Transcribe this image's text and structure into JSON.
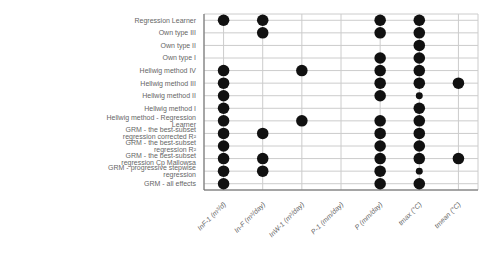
{
  "chart_data": {
    "type": "scatter",
    "categories": [
      "InF-1 (m³/d)",
      "In-F (m³/day)",
      "InW-1 (m³/day)",
      "P-1 (mm/day)",
      "P (mm/day)",
      "tmax (°C)",
      "tmean (°C)"
    ],
    "y_categories": [
      "Regression Learner",
      "Own type III",
      "Own type II",
      "Own type I",
      "Hellwig method IV",
      "Hellwig method III",
      "Hellwig method II",
      "Hellwig method I",
      "Hellwig method - Regression Learner",
      "GRM - the best-subset regression corrected R²",
      "GRM - the best-subset regression R²",
      "GRM - the best-subset regression Cp Mallowsa",
      "GRM - progressive stepwise regression",
      "GRM - all effects"
    ],
    "values": [
      [
        1,
        1,
        0,
        0,
        1,
        1,
        0
      ],
      [
        0,
        1,
        0,
        0,
        1,
        1,
        0
      ],
      [
        0,
        0,
        0,
        0,
        0,
        1,
        0
      ],
      [
        0,
        0,
        0,
        0,
        1,
        1,
        0
      ],
      [
        1,
        0,
        1,
        0,
        1,
        1,
        0
      ],
      [
        1,
        0,
        0,
        0,
        1,
        1,
        1
      ],
      [
        1,
        0,
        0,
        0,
        1,
        1,
        0
      ],
      [
        1,
        0,
        0,
        0,
        0,
        1,
        0
      ],
      [
        1,
        0,
        1,
        0,
        1,
        1,
        0
      ],
      [
        1,
        1,
        0,
        0,
        1,
        1,
        0
      ],
      [
        1,
        0,
        0,
        0,
        1,
        1,
        0
      ],
      [
        1,
        1,
        0,
        0,
        1,
        1,
        1
      ],
      [
        1,
        1,
        0,
        0,
        1,
        1,
        0
      ],
      [
        1,
        0,
        0,
        0,
        1,
        1,
        0
      ]
    ],
    "sizes": [
      [
        55,
        55,
        null,
        null,
        55,
        55,
        null
      ],
      [
        null,
        55,
        null,
        null,
        55,
        55,
        null
      ],
      [
        null,
        null,
        null,
        null,
        null,
        55,
        null
      ],
      [
        null,
        null,
        null,
        null,
        55,
        55,
        null
      ],
      [
        55,
        null,
        55,
        null,
        55,
        55,
        null
      ],
      [
        55,
        null,
        null,
        null,
        55,
        55,
        55
      ],
      [
        55,
        null,
        null,
        null,
        55,
        20,
        null
      ],
      [
        55,
        null,
        null,
        null,
        null,
        55,
        null
      ],
      [
        55,
        null,
        55,
        null,
        55,
        55,
        null
      ],
      [
        55,
        55,
        null,
        null,
        55,
        55,
        null
      ],
      [
        55,
        null,
        null,
        null,
        55,
        55,
        null
      ],
      [
        55,
        55,
        null,
        null,
        55,
        55,
        55
      ],
      [
        55,
        55,
        null,
        null,
        55,
        20,
        null
      ],
      [
        55,
        null,
        null,
        null,
        55,
        55,
        null
      ]
    ],
    "color": "#111111",
    "grid": true
  }
}
